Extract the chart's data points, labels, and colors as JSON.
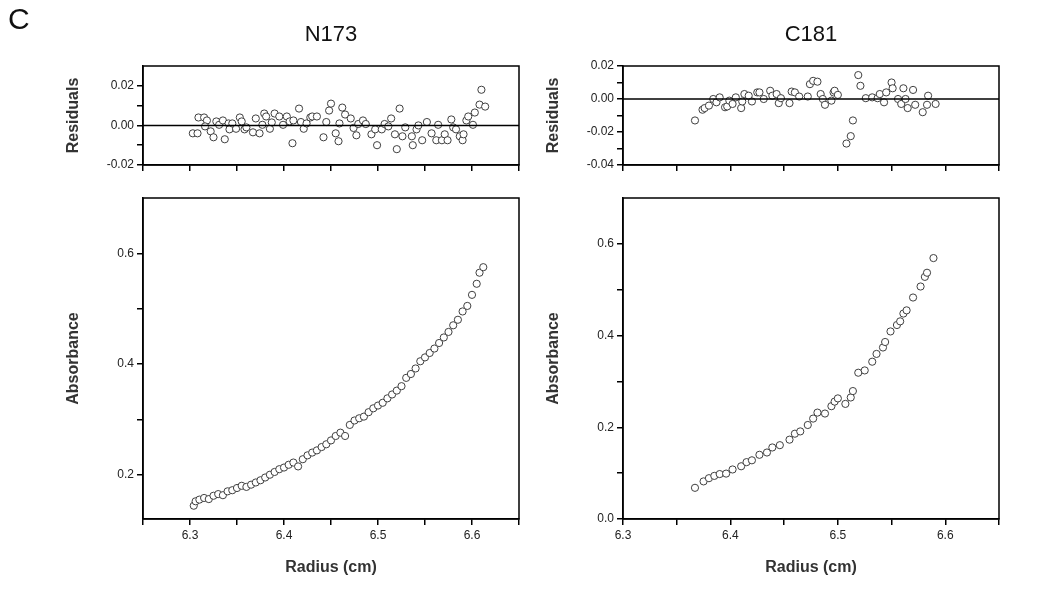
{
  "chart_data": [
    {
      "type": "scatter",
      "title": "N173",
      "ylabel": "Residuals",
      "annotations": [
        "C"
      ],
      "color": "#404040",
      "marker": "circle",
      "tick_labels": "y",
      "xlim": [
        6.25,
        6.65
      ],
      "xticks": [
        {
          "value": 6.25,
          "label": null
        },
        {
          "value": 6.3,
          "label": null
        },
        {
          "value": 6.35,
          "label": null
        },
        {
          "value": 6.4,
          "label": null
        },
        {
          "value": 6.45,
          "label": null
        },
        {
          "value": 6.5,
          "label": null
        },
        {
          "value": 6.55,
          "label": null
        },
        {
          "value": 6.6,
          "label": null
        },
        {
          "value": 6.65,
          "label": null
        }
      ],
      "ylim": [
        -0.02,
        0.03
      ],
      "yticks": [
        {
          "value": -0.02,
          "label": "-0.02"
        },
        {
          "value": -0.01,
          "label": null
        },
        {
          "value": 0,
          "label": "0.00"
        },
        {
          "value": 0.01,
          "label": null
        },
        {
          "value": 0.02,
          "label": "0.02"
        }
      ],
      "ref_lines": [
        {
          "axis": "y",
          "value": 0,
          "color": "#000000"
        }
      ],
      "x": [
        6.303,
        6.308,
        6.309,
        6.315,
        6.318,
        6.316,
        6.322,
        6.325,
        6.328,
        6.331,
        6.335,
        6.337,
        6.341,
        6.342,
        6.345,
        6.349,
        6.353,
        6.355,
        6.358,
        6.36,
        6.367,
        6.37,
        6.374,
        6.377,
        6.379,
        6.381,
        6.385,
        6.387,
        6.39,
        6.395,
        6.399,
        6.403,
        6.406,
        6.409,
        6.41,
        6.416,
        6.418,
        6.421,
        6.424,
        6.428,
        6.43,
        6.435,
        6.442,
        6.445,
        6.448,
        6.45,
        6.455,
        6.458,
        6.459,
        6.462,
        6.465,
        6.471,
        6.474,
        6.477,
        6.479,
        6.484,
        6.487,
        6.493,
        6.497,
        6.499,
        6.504,
        6.507,
        6.511,
        6.514,
        6.518,
        6.52,
        6.523,
        6.526,
        6.529,
        6.536,
        6.537,
        6.541,
        6.543,
        6.547,
        6.552,
        6.557,
        6.562,
        6.564,
        6.568,
        6.571,
        6.574,
        6.578,
        6.58,
        6.583,
        6.587,
        6.59,
        6.591,
        6.594,
        6.596,
        6.601,
        6.603,
        6.608,
        6.61,
        6.614
      ],
      "values": [
        -0.004,
        -0.004,
        0.004,
        0.004,
        0.0025,
        -0.0005,
        -0.003,
        -0.006,
        0.002,
        0.0003,
        0.0025,
        -0.007,
        0.001,
        -0.002,
        0.001,
        -0.0017,
        0.004,
        0.002,
        -0.002,
        -0.001,
        -0.0035,
        0.0035,
        -0.004,
        0.0003,
        0.006,
        0.0045,
        -0.0017,
        0.0015,
        0.006,
        0.0045,
        0.0003,
        0.0045,
        0.002,
        -0.009,
        0.0025,
        0.0085,
        0.0017,
        -0.0017,
        0.001,
        0.004,
        0.0045,
        0.0045,
        -0.006,
        0.0017,
        0.0075,
        0.011,
        -0.004,
        -0.008,
        0.001,
        0.009,
        0.0055,
        0.0035,
        -0.0013,
        -0.005,
        0.0007,
        0.0025,
        0.0007,
        -0.0045,
        -0.002,
        -0.01,
        -0.002,
        0.0007,
        -0.0005,
        0.0035,
        -0.0045,
        -0.012,
        0.0085,
        -0.0055,
        -0.001,
        -0.0055,
        -0.01,
        -0.002,
        0,
        -0.0075,
        0.0017,
        -0.004,
        -0.0075,
        0.0003,
        -0.0075,
        -0.0045,
        -0.0075,
        0.003,
        -0.001,
        -0.002,
        -0.0055,
        -0.0075,
        -0.0045,
        0.0025,
        0.0045,
        0.0003,
        0.0065,
        0.0105,
        0.018,
        0.0095
      ]
    },
    {
      "type": "scatter",
      "title": "C181",
      "ylabel": "Residuals",
      "color": "#404040",
      "marker": "circle",
      "tick_labels": "y",
      "xlim": [
        6.3,
        6.65
      ],
      "xticks": [
        {
          "value": 6.3,
          "label": null
        },
        {
          "value": 6.35,
          "label": null
        },
        {
          "value": 6.4,
          "label": null
        },
        {
          "value": 6.45,
          "label": null
        },
        {
          "value": 6.5,
          "label": null
        },
        {
          "value": 6.55,
          "label": null
        },
        {
          "value": 6.6,
          "label": null
        },
        {
          "value": 6.65,
          "label": null
        }
      ],
      "ylim": [
        -0.04,
        0.02
      ],
      "yticks": [
        {
          "value": -0.04,
          "label": "-0.04"
        },
        {
          "value": -0.03,
          "label": null
        },
        {
          "value": -0.02,
          "label": "-0.02"
        },
        {
          "value": -0.01,
          "label": null
        },
        {
          "value": 0,
          "label": "0.00"
        },
        {
          "value": 0.01,
          "label": null
        },
        {
          "value": 0.02,
          "label": "0.02"
        }
      ],
      "ref_lines": [
        {
          "axis": "y",
          "value": 0,
          "color": "#000000"
        }
      ],
      "x": [
        6.367,
        6.374,
        6.376,
        6.38,
        6.384,
        6.387,
        6.39,
        6.395,
        6.397,
        6.399,
        6.402,
        6.405,
        6.41,
        6.411,
        6.413,
        6.417,
        6.42,
        6.425,
        6.427,
        6.431,
        6.437,
        6.439,
        6.443,
        6.445,
        6.447,
        6.455,
        6.457,
        6.46,
        6.464,
        6.472,
        6.474,
        6.477,
        6.481,
        6.484,
        6.486,
        6.488,
        6.494,
        6.496,
        6.497,
        6.5,
        6.508,
        6.512,
        6.514,
        6.519,
        6.521,
        6.526,
        6.532,
        6.537,
        6.539,
        6.543,
        6.545,
        6.55,
        6.551,
        6.556,
        6.559,
        6.561,
        6.563,
        6.565,
        6.57,
        6.572,
        6.579,
        6.583,
        6.584,
        6.591
      ],
      "values": [
        -0.013,
        -0.0065,
        -0.0055,
        -0.004,
        0,
        -0.002,
        0.001,
        -0.005,
        -0.0045,
        -0.001,
        -0.003,
        0.001,
        -0.0055,
        -0.0015,
        0.003,
        0.002,
        -0.0015,
        0.004,
        0.004,
        0,
        0.005,
        0.002,
        0.003,
        -0.0025,
        0.0005,
        -0.0025,
        0.0045,
        0.004,
        0.0015,
        0.0015,
        0.009,
        0.011,
        0.0105,
        0.003,
        0,
        -0.0035,
        -0.001,
        0.004,
        0.005,
        0.0025,
        -0.027,
        -0.0225,
        -0.013,
        0.0145,
        0.008,
        0.0005,
        0.001,
        0.0005,
        0.003,
        -0.002,
        0.004,
        0.01,
        0.0065,
        0,
        -0.003,
        0.0065,
        0,
        -0.0055,
        0.0055,
        -0.0035,
        -0.008,
        -0.0035,
        0.002,
        -0.003
      ]
    },
    {
      "type": "scatter",
      "xlabel": "Radius (cm)",
      "ylabel": "Absorbance",
      "color": "#404040",
      "marker": "circle",
      "xlim": [
        6.25,
        6.65
      ],
      "xticks": [
        {
          "value": 6.25,
          "label": null
        },
        6.3,
        {
          "value": 6.35,
          "label": null
        },
        6.4,
        {
          "value": 6.45,
          "label": null
        },
        6.5,
        {
          "value": 6.55,
          "label": null
        },
        6.6,
        {
          "value": 6.65,
          "label": null
        }
      ],
      "ylim": [
        0.12,
        0.7
      ],
      "yticks": [
        0.2,
        {
          "value": 0.3,
          "label": null
        },
        0.4,
        {
          "value": 0.5,
          "label": null
        },
        0.6
      ],
      "x": [
        6.304,
        6.306,
        6.31,
        6.315,
        6.32,
        6.325,
        6.33,
        6.335,
        6.34,
        6.345,
        6.35,
        6.355,
        6.36,
        6.365,
        6.37,
        6.375,
        6.38,
        6.385,
        6.39,
        6.395,
        6.4,
        6.405,
        6.41,
        6.415,
        6.42,
        6.425,
        6.43,
        6.435,
        6.44,
        6.445,
        6.45,
        6.455,
        6.46,
        6.465,
        6.47,
        6.475,
        6.48,
        6.485,
        6.49,
        6.495,
        6.5,
        6.505,
        6.51,
        6.515,
        6.52,
        6.525,
        6.53,
        6.535,
        6.54,
        6.545,
        6.55,
        6.555,
        6.56,
        6.565,
        6.57,
        6.575,
        6.58,
        6.585,
        6.59,
        6.595,
        6.6,
        6.605,
        6.608,
        6.612
      ],
      "values": [
        0.144,
        0.152,
        0.155,
        0.158,
        0.156,
        0.162,
        0.165,
        0.163,
        0.17,
        0.172,
        0.176,
        0.18,
        0.178,
        0.182,
        0.186,
        0.19,
        0.195,
        0.2,
        0.205,
        0.21,
        0.213,
        0.218,
        0.222,
        0.215,
        0.228,
        0.235,
        0.24,
        0.244,
        0.25,
        0.255,
        0.262,
        0.27,
        0.276,
        0.27,
        0.29,
        0.298,
        0.302,
        0.305,
        0.313,
        0.32,
        0.325,
        0.33,
        0.338,
        0.345,
        0.352,
        0.36,
        0.375,
        0.382,
        0.392,
        0.405,
        0.412,
        0.42,
        0.428,
        0.438,
        0.448,
        0.458,
        0.47,
        0.48,
        0.495,
        0.505,
        0.525,
        0.545,
        0.565,
        0.575
      ]
    },
    {
      "type": "scatter",
      "xlabel": "Radius (cm)",
      "ylabel": "Absorbance",
      "color": "#404040",
      "marker": "circle",
      "xlim": [
        6.3,
        6.65
      ],
      "xticks": [
        6.3,
        {
          "value": 6.35,
          "label": null
        },
        6.4,
        {
          "value": 6.45,
          "label": null
        },
        6.5,
        {
          "value": 6.55,
          "label": null
        },
        6.6,
        {
          "value": 6.65,
          "label": null
        }
      ],
      "ylim": [
        0,
        0.7
      ],
      "yticks": [
        {
          "value": 0,
          "label": "0.0"
        },
        {
          "value": 0.1,
          "label": null
        },
        0.2,
        {
          "value": 0.3,
          "label": null
        },
        0.4,
        {
          "value": 0.5,
          "label": null
        },
        0.6
      ],
      "x": [
        6.367,
        6.375,
        6.38,
        6.385,
        6.39,
        6.396,
        6.402,
        6.41,
        6.415,
        6.42,
        6.427,
        6.434,
        6.439,
        6.446,
        6.455,
        6.46,
        6.465,
        6.472,
        6.477,
        6.481,
        6.488,
        6.494,
        6.497,
        6.5,
        6.507,
        6.512,
        6.514,
        6.519,
        6.525,
        6.532,
        6.536,
        6.542,
        6.544,
        6.549,
        6.555,
        6.558,
        6.561,
        6.564,
        6.57,
        6.577,
        6.581,
        6.583,
        6.589
      ],
      "values": [
        0.068,
        0.082,
        0.089,
        0.094,
        0.098,
        0.099,
        0.108,
        0.115,
        0.124,
        0.128,
        0.14,
        0.145,
        0.156,
        0.161,
        0.173,
        0.186,
        0.191,
        0.205,
        0.219,
        0.232,
        0.23,
        0.246,
        0.256,
        0.263,
        0.251,
        0.265,
        0.279,
        0.319,
        0.324,
        0.343,
        0.36,
        0.374,
        0.386,
        0.409,
        0.423,
        0.431,
        0.448,
        0.455,
        0.483,
        0.507,
        0.528,
        0.537,
        0.569
      ]
    }
  ]
}
